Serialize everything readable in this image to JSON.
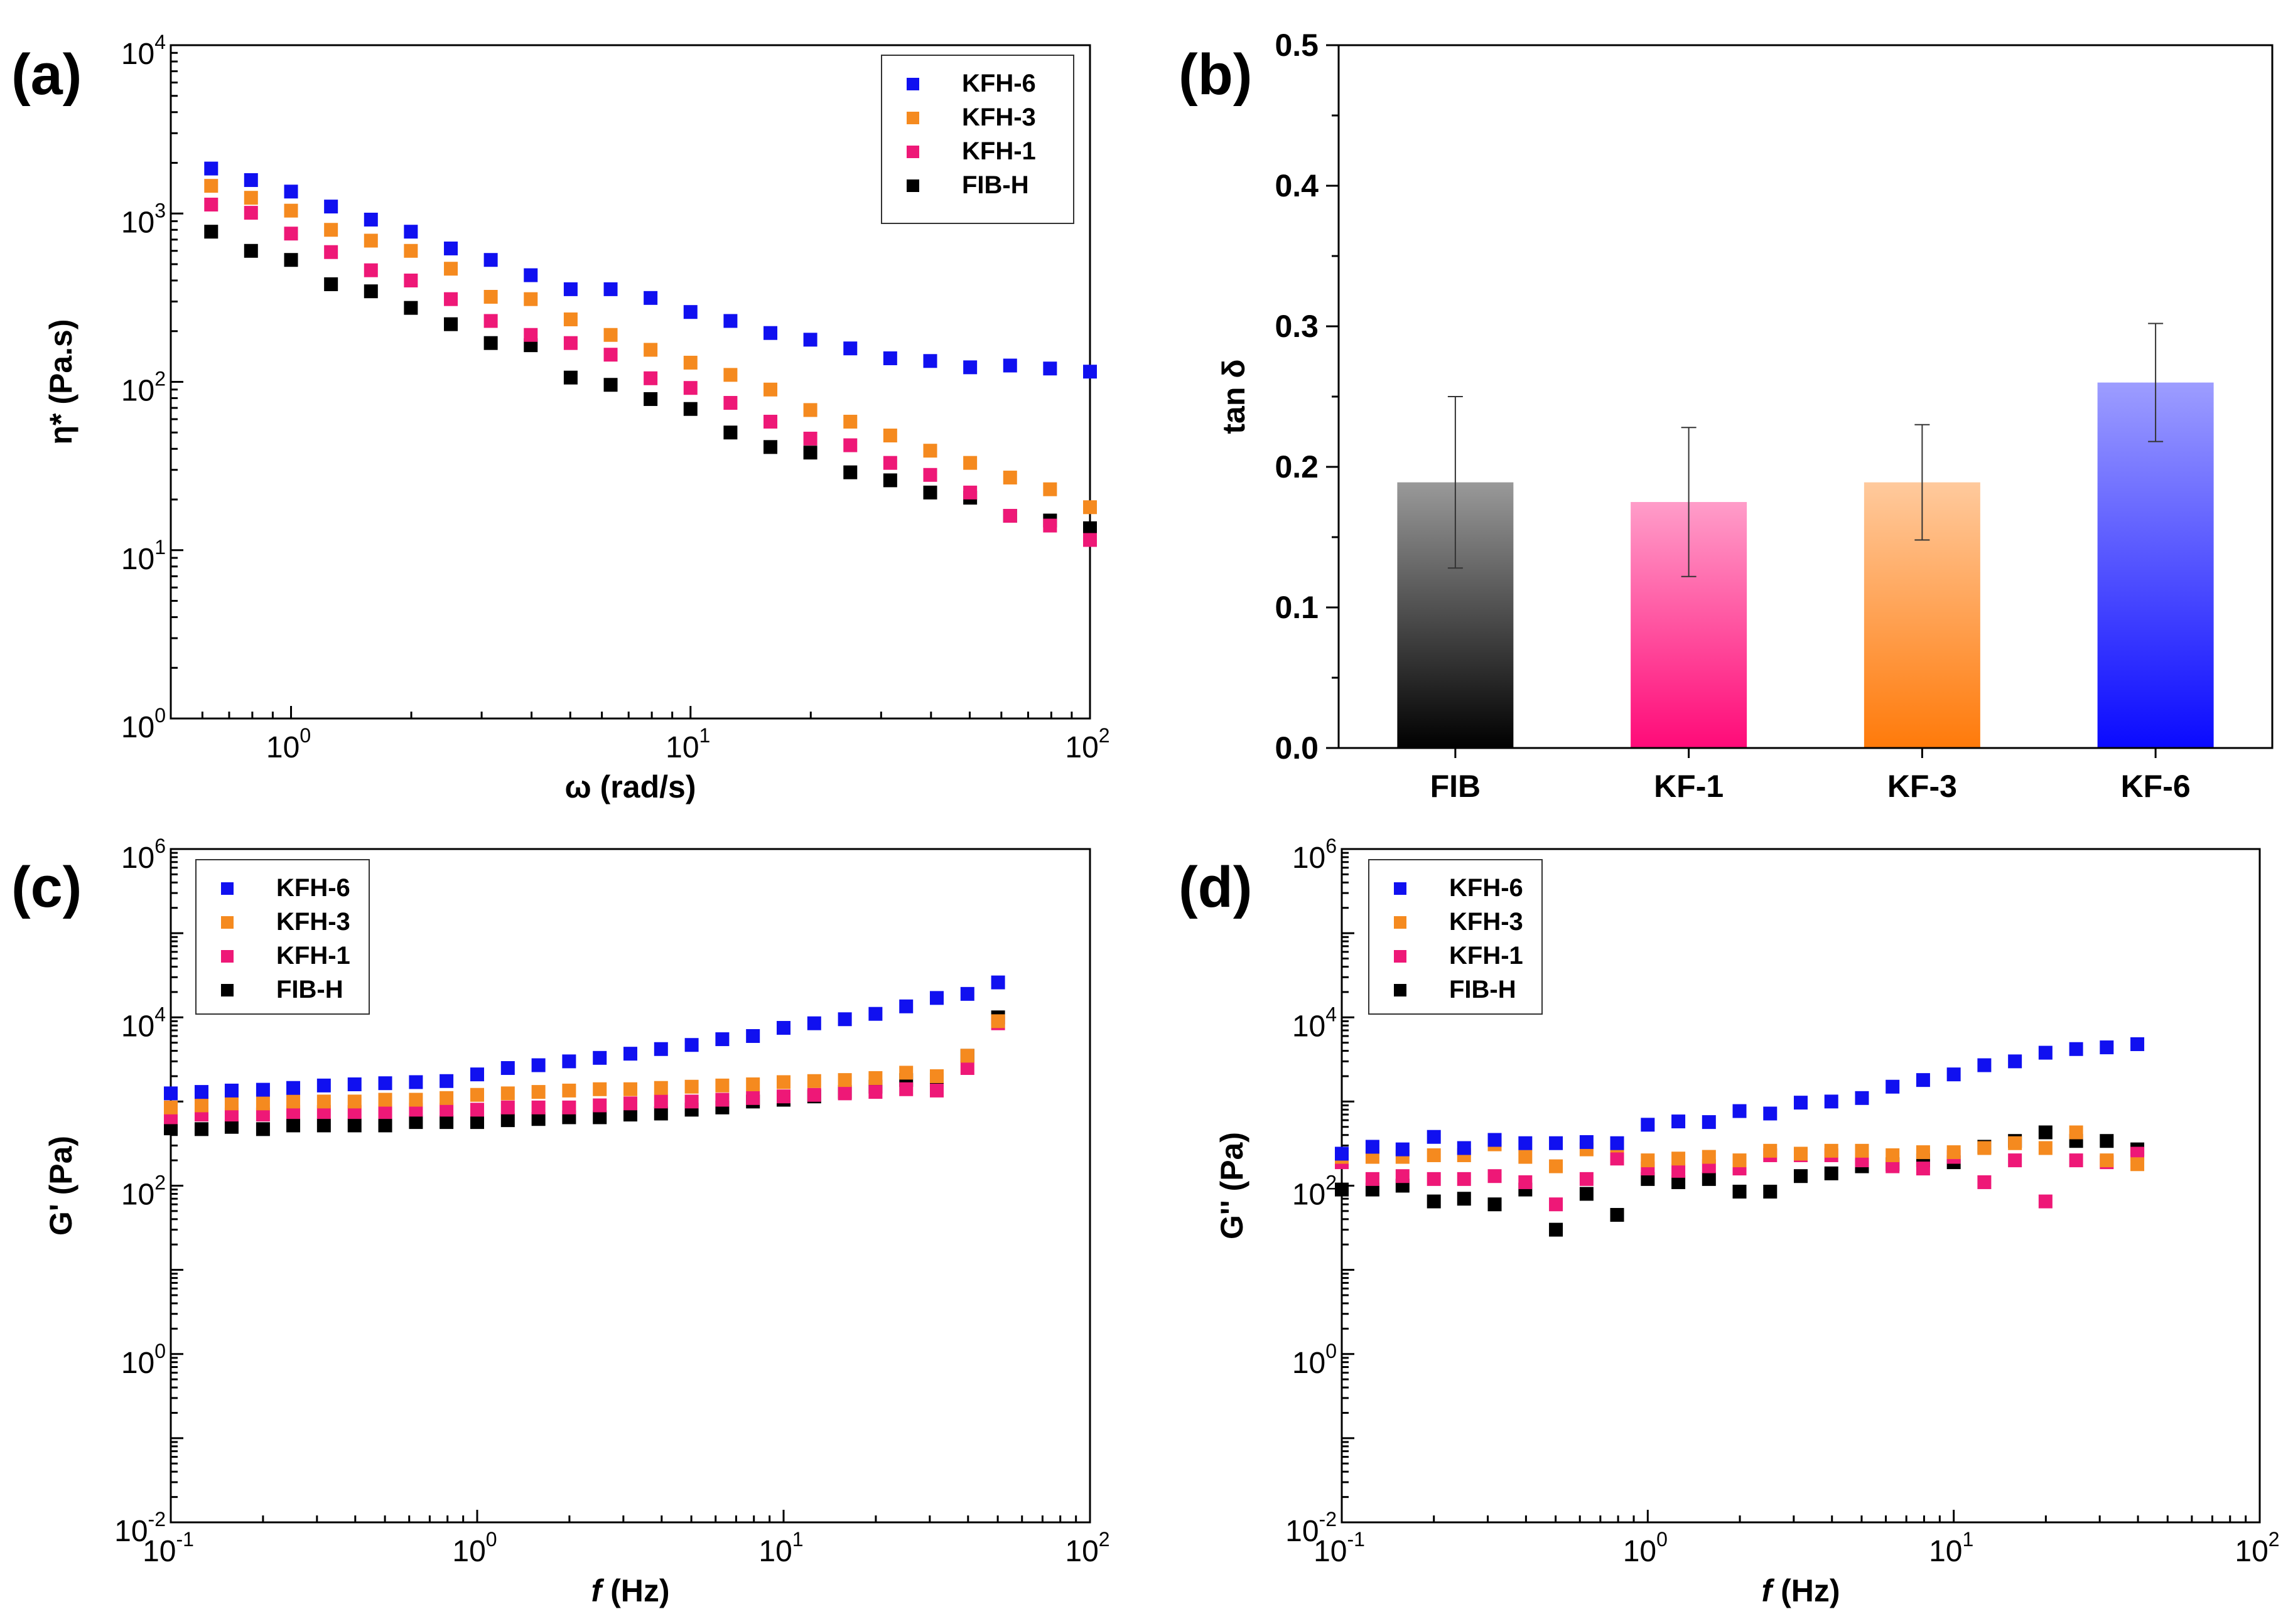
{
  "colors": {
    "KFH-6": "#1010f0",
    "KFH-3": "#f58a1f",
    "KFH-1": "#ee1877",
    "FIB-H": "#000000"
  },
  "chart_data": [
    {
      "panel": "(a)",
      "type": "scatter",
      "xscale": "log",
      "yscale": "log",
      "xlabel": "ω (rad/s)",
      "ylabel": "η* (Pa.s)",
      "xlim": [
        0.5,
        100
      ],
      "ylim": [
        1,
        10000
      ],
      "xticks": [
        {
          "base": "10",
          "exp": "0"
        },
        {
          "base": "10",
          "exp": "1"
        },
        {
          "base": "10",
          "exp": "2"
        }
      ],
      "yticks": [
        {
          "base": "10",
          "exp": "0"
        },
        {
          "base": "10",
          "exp": "1"
        },
        {
          "base": "10",
          "exp": "2"
        },
        {
          "base": "10",
          "exp": "3"
        },
        {
          "base": "10",
          "exp": "4"
        }
      ],
      "legend": "top-right",
      "x": [
        0.631,
        0.794,
        1,
        1.259,
        1.585,
        1.995,
        2.512,
        3.162,
        3.981,
        5.012,
        6.31,
        7.943,
        10,
        12.59,
        15.85,
        19.95,
        25.12,
        31.62,
        39.81,
        50.12,
        63.1,
        79.43,
        100
      ],
      "series": [
        {
          "name": "KFH-6",
          "values": [
            1850,
            1580,
            1350,
            1100,
            920,
            780,
            620,
            530,
            430,
            355,
            355,
            315,
            260,
            230,
            195,
            178,
            158,
            138,
            133,
            122,
            125,
            120,
            115
          ]
        },
        {
          "name": "KFH-3",
          "values": [
            1460,
            1240,
            1040,
            800,
            690,
            600,
            470,
            320,
            310,
            235,
            190,
            155,
            130,
            110,
            90,
            68,
            58,
            48,
            39,
            33,
            27,
            23,
            18
          ]
        },
        {
          "name": "KFH-1",
          "values": [
            1130,
            1010,
            760,
            590,
            460,
            400,
            310,
            230,
            190,
            170,
            145,
            105,
            92,
            75,
            58,
            46,
            42,
            33,
            28,
            22,
            16,
            14,
            11.5
          ]
        },
        {
          "name": "FIB-H",
          "values": [
            780,
            600,
            530,
            380,
            345,
            275,
            220,
            170,
            165,
            106,
            96,
            79,
            69,
            50,
            41,
            38,
            29,
            26,
            22,
            20.5,
            16,
            15,
            13.5
          ]
        }
      ]
    },
    {
      "panel": "(b)",
      "type": "bar",
      "categories": [
        "FIB",
        "KF-1",
        "KF-3",
        "KF-6"
      ],
      "values": [
        0.189,
        0.175,
        0.189,
        0.26
      ],
      "errors": [
        0.061,
        0.053,
        0.041,
        0.042
      ],
      "bar_colors": [
        "#000000",
        "#ff0a78",
        "#ff7a0a",
        "#0a0aff"
      ],
      "xlabel": "",
      "ylabel": "tan δ",
      "ylim": [
        0,
        0.5
      ],
      "yticks": [
        "0.0",
        "0.1",
        "0.2",
        "0.3",
        "0.4",
        "0.5"
      ]
    },
    {
      "panel": "(c)",
      "type": "scatter",
      "xscale": "log",
      "yscale": "log",
      "xlabel_italic": "f",
      "xlabel": " (Hz)",
      "ylabel": "G' (Pa)",
      "xlim": [
        0.1,
        100
      ],
      "ylim": [
        0.01,
        1000000
      ],
      "xticks": [
        {
          "base": "10",
          "exp": "-1"
        },
        {
          "base": "10",
          "exp": "0"
        },
        {
          "base": "10",
          "exp": "1"
        },
        {
          "base": "10",
          "exp": "2"
        }
      ],
      "yticks": [
        {
          "base": "10",
          "exp": "-2"
        },
        {
          "base": "10",
          "exp": "0"
        },
        {
          "base": "10",
          "exp": "2"
        },
        {
          "base": "10",
          "exp": "4"
        },
        {
          "base": "10",
          "exp": "6"
        }
      ],
      "legend": "top-left",
      "x": [
        0.1,
        0.126,
        0.158,
        0.2,
        0.251,
        0.316,
        0.398,
        0.501,
        0.631,
        0.794,
        1,
        1.259,
        1.585,
        1.995,
        2.512,
        3.162,
        3.981,
        5.012,
        6.31,
        7.943,
        10,
        12.59,
        15.85,
        19.95,
        25.12,
        31.62,
        39.81,
        50.12
      ],
      "series": [
        {
          "name": "KFH-6",
          "values": [
            1250,
            1300,
            1350,
            1380,
            1450,
            1550,
            1600,
            1650,
            1700,
            1750,
            2100,
            2500,
            2700,
            3000,
            3300,
            3700,
            4200,
            4700,
            5500,
            6000,
            7500,
            8500,
            9500,
            11000,
            13500,
            17000,
            19000,
            26000
          ]
        },
        {
          "name": "KFH-3",
          "values": [
            850,
            900,
            950,
            950,
            1000,
            1000,
            1000,
            1050,
            1050,
            1100,
            1200,
            1250,
            1300,
            1350,
            1400,
            1400,
            1450,
            1500,
            1550,
            1600,
            1700,
            1750,
            1800,
            1900,
            2200,
            2000,
            3500,
            9000
          ]
        },
        {
          "name": "KFH-1",
          "values": [
            650,
            700,
            700,
            700,
            750,
            750,
            750,
            750,
            800,
            800,
            800,
            850,
            850,
            850,
            900,
            950,
            1000,
            1000,
            1050,
            1100,
            1150,
            1200,
            1250,
            1300,
            1400,
            1350,
            2500,
            8500
          ]
        },
        {
          "name": "FIB-H",
          "values": [
            480,
            470,
            500,
            470,
            520,
            520,
            520,
            520,
            570,
            570,
            570,
            600,
            620,
            650,
            650,
            700,
            720,
            800,
            850,
            1000,
            1050,
            1150,
            1300,
            1500,
            1800,
            1800,
            3500,
            10000
          ]
        }
      ]
    },
    {
      "panel": "(d)",
      "type": "scatter",
      "xscale": "log",
      "yscale": "log",
      "xlabel_italic": "f",
      "xlabel": " (Hz)",
      "ylabel": "G'' (Pa)",
      "xlim": [
        0.1,
        100
      ],
      "ylim": [
        0.01,
        1000000
      ],
      "xticks": [
        {
          "base": "10",
          "exp": "-1"
        },
        {
          "base": "10",
          "exp": "0"
        },
        {
          "base": "10",
          "exp": "1"
        },
        {
          "base": "10",
          "exp": "2"
        }
      ],
      "yticks": [
        {
          "base": "10",
          "exp": "-2"
        },
        {
          "base": "10",
          "exp": "0"
        },
        {
          "base": "10",
          "exp": "2"
        },
        {
          "base": "10",
          "exp": "4"
        },
        {
          "base": "10",
          "exp": "6"
        }
      ],
      "legend": "top-left",
      "x": [
        0.1,
        0.126,
        0.158,
        0.2,
        0.251,
        0.316,
        0.398,
        0.501,
        0.631,
        0.794,
        1,
        1.259,
        1.585,
        1.995,
        2.512,
        3.162,
        3.981,
        5.012,
        6.31,
        7.943,
        10,
        12.59,
        15.85,
        19.95,
        25.12,
        31.62,
        39.81
      ],
      "series": [
        {
          "name": "KFH-6",
          "values": [
            240,
            290,
            270,
            380,
            280,
            350,
            320,
            320,
            330,
            320,
            530,
            580,
            570,
            770,
            720,
            970,
            1000,
            1100,
            1500,
            1800,
            2100,
            2700,
            3000,
            3800,
            4200,
            4400,
            4800
          ]
        },
        {
          "name": "KFH-3",
          "values": [
            220,
            220,
            220,
            230,
            230,
            310,
            220,
            170,
            270,
            300,
            200,
            210,
            220,
            200,
            260,
            240,
            260,
            260,
            230,
            250,
            250,
            280,
            320,
            280,
            430,
            200,
            180
          ]
        },
        {
          "name": "KFH-1",
          "values": [
            190,
            120,
            130,
            120,
            120,
            130,
            110,
            60,
            120,
            210,
            160,
            150,
            170,
            160,
            230,
            230,
            230,
            200,
            170,
            160,
            220,
            110,
            200,
            65,
            200,
            190,
            240
          ]
        },
        {
          "name": "FIB-H",
          "values": [
            90,
            90,
            100,
            65,
            70,
            60,
            90,
            30,
            80,
            45,
            120,
            110,
            120,
            85,
            85,
            130,
            140,
            170,
            180,
            200,
            190,
            290,
            340,
            430,
            340,
            340,
            270
          ]
        }
      ]
    }
  ]
}
